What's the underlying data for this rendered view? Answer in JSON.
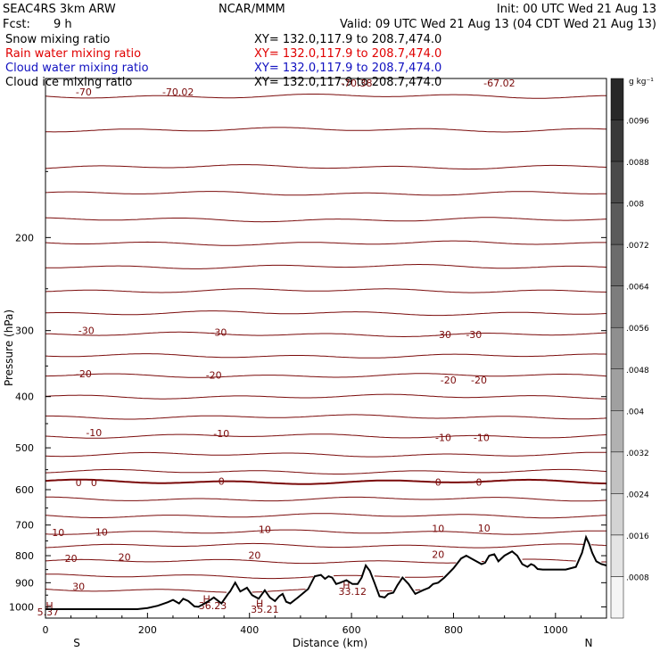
{
  "header": {
    "model": "SEAC4RS  3km ARW",
    "center": "NCAR/MMM",
    "init": "Init: 00 UTC Wed 21 Aug 13",
    "fcst_label": "Fcst:",
    "fcst_value": "9 h",
    "valid": "Valid: 09 UTC Wed 21 Aug 13 (04 CDT Wed 21 Aug 13)"
  },
  "fields": [
    {
      "label": "Snow mixing ratio",
      "xy": "XY= 132.0,117.9 to 208.7,474.0",
      "color": "#000000"
    },
    {
      "label": "Rain water mixing ratio",
      "xy": "XY= 132.0,117.9 to 208.7,474.0",
      "color": "#e00000"
    },
    {
      "label": "Cloud water mixing ratio",
      "xy": "XY= 132.0,117.9 to 208.7,474.0",
      "color": "#1010c0"
    },
    {
      "label": "Cloud ice mixing ratio",
      "xy": "XY= 132.0,117.9 to 208.7,474.0",
      "color": "#000000"
    }
  ],
  "colorbar": {
    "unit": "g kg⁻¹",
    "ticks": [
      ".0096",
      ".0088",
      ".008",
      ".0072",
      ".0064",
      ".0056",
      ".0048",
      ".004",
      ".0032",
      ".0024",
      ".0016",
      ".0008"
    ]
  },
  "chart_data": {
    "type": "contour",
    "xlabel": "Distance (km)",
    "ylabel": "Pressure (hPa)",
    "x_range": [
      0,
      1100
    ],
    "y_range": [
      1050,
      100
    ],
    "y_scale": "log",
    "x_ticks": [
      0,
      200,
      400,
      600,
      800,
      1000
    ],
    "y_ticks": [
      200,
      300,
      400,
      500,
      600,
      700,
      800,
      900,
      1000
    ],
    "left_end_label": "S",
    "right_end_label": "N",
    "contour_color": "#7a0a0a",
    "contour_labels": [
      {
        "text": "-70",
        "x": 75,
        "p": 106
      },
      {
        "text": "-70.02",
        "x": 260,
        "p": 106
      },
      {
        "text": "-70.38",
        "x": 610,
        "p": 102
      },
      {
        "text": "-67.02",
        "x": 890,
        "p": 102
      },
      {
        "text": "-30",
        "x": 80,
        "p": 300
      },
      {
        "text": "-30",
        "x": 340,
        "p": 302
      },
      {
        "text": "-30",
        "x": 780,
        "p": 305
      },
      {
        "text": "-30",
        "x": 840,
        "p": 305
      },
      {
        "text": "-20",
        "x": 75,
        "p": 362
      },
      {
        "text": "-20",
        "x": 330,
        "p": 364
      },
      {
        "text": "-20",
        "x": 790,
        "p": 372
      },
      {
        "text": "-20",
        "x": 850,
        "p": 372
      },
      {
        "text": "-10",
        "x": 95,
        "p": 468
      },
      {
        "text": "-10",
        "x": 345,
        "p": 470
      },
      {
        "text": "-10",
        "x": 780,
        "p": 478
      },
      {
        "text": "-10",
        "x": 855,
        "p": 478
      },
      {
        "text": "0",
        "x": 65,
        "p": 582
      },
      {
        "text": "0",
        "x": 95,
        "p": 582
      },
      {
        "text": "0",
        "x": 345,
        "p": 578
      },
      {
        "text": "0",
        "x": 770,
        "p": 580
      },
      {
        "text": "0",
        "x": 850,
        "p": 580
      },
      {
        "text": "10",
        "x": 25,
        "p": 723
      },
      {
        "text": "10",
        "x": 110,
        "p": 721
      },
      {
        "text": "10",
        "x": 430,
        "p": 713
      },
      {
        "text": "10",
        "x": 770,
        "p": 711
      },
      {
        "text": "10",
        "x": 860,
        "p": 709
      },
      {
        "text": "20",
        "x": 50,
        "p": 810
      },
      {
        "text": "20",
        "x": 155,
        "p": 805
      },
      {
        "text": "20",
        "x": 410,
        "p": 798
      },
      {
        "text": "20",
        "x": 770,
        "p": 796
      },
      {
        "text": "30",
        "x": 65,
        "p": 915
      },
      {
        "text": "H",
        "x": 316,
        "p": 965
      },
      {
        "text": "36.23",
        "x": 328,
        "p": 995
      },
      {
        "text": "H",
        "x": 420,
        "p": 985
      },
      {
        "text": "35.21",
        "x": 430,
        "p": 1010
      },
      {
        "text": "H",
        "x": 590,
        "p": 910
      },
      {
        "text": "33.12",
        "x": 602,
        "p": 935
      },
      {
        "text": "H",
        "x": 8,
        "p": 995
      },
      {
        "text": "5.37",
        "x": 5,
        "p": 1022
      }
    ],
    "contour_levels_hpa": [
      108,
      125,
      147,
      165,
      185,
      205,
      227,
      252,
      278,
      305,
      335,
      365,
      400,
      437,
      475,
      515,
      555,
      580,
      625,
      672,
      722,
      766,
      820,
      875,
      930
    ],
    "terrain": {
      "x": [
        0,
        180,
        200,
        220,
        240,
        250,
        262,
        270,
        280,
        292,
        300,
        312,
        320,
        330,
        345,
        358,
        362,
        372,
        382,
        395,
        405,
        418,
        430,
        440,
        450,
        458,
        465,
        472,
        480,
        495,
        515,
        528,
        540,
        548,
        555,
        562,
        570,
        578,
        590,
        602,
        612,
        620,
        628,
        636,
        645,
        655,
        665,
        672,
        682,
        690,
        700,
        712,
        725,
        740,
        752,
        760,
        770,
        782,
        800,
        815,
        825,
        835,
        845,
        855,
        862,
        870,
        880,
        888,
        900,
        915,
        925,
        935,
        945,
        952,
        958,
        965,
        975,
        985,
        1000,
        1020,
        1040,
        1052,
        1060,
        1066,
        1072,
        1080,
        1090,
        1100
      ],
      "p": [
        1010,
        1010,
        1005,
        995,
        980,
        970,
        985,
        965,
        975,
        998,
        1000,
        985,
        975,
        960,
        985,
        945,
        935,
        900,
        935,
        920,
        950,
        965,
        930,
        960,
        975,
        955,
        945,
        978,
        985,
        960,
        925,
        875,
        870,
        885,
        875,
        880,
        905,
        900,
        890,
        905,
        905,
        880,
        835,
        855,
        900,
        955,
        960,
        945,
        940,
        910,
        880,
        905,
        945,
        930,
        920,
        905,
        900,
        880,
        845,
        810,
        800,
        810,
        820,
        830,
        825,
        800,
        795,
        820,
        800,
        785,
        800,
        830,
        840,
        830,
        835,
        848,
        850,
        850,
        850,
        850,
        840,
        790,
        738,
        760,
        790,
        820,
        830,
        835
      ]
    }
  }
}
